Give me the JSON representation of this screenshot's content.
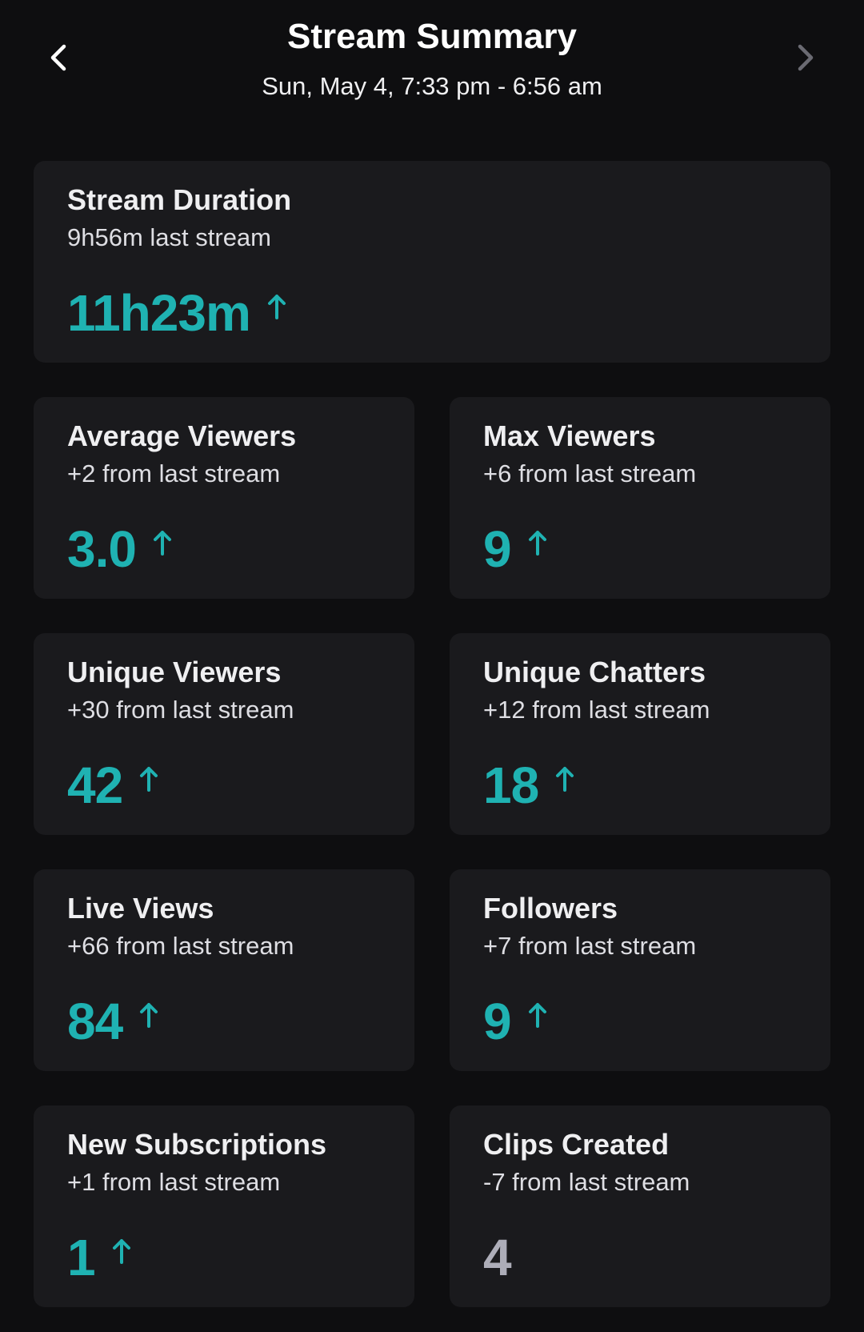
{
  "header": {
    "title": "Stream Summary",
    "subtitle": "Sun, May 4, 7:33 pm - 6:56 am"
  },
  "colors": {
    "background": "#0e0e10",
    "card": "#1a1a1d",
    "accent_up": "#1fb2b2",
    "neutral_value": "#adadb8",
    "next_disabled": "#6a6a72"
  },
  "icons": {
    "prev": "chevron-left-icon",
    "next": "chevron-right-icon",
    "trend": "arrow-up-icon"
  },
  "cards": [
    {
      "title": "Stream Duration",
      "subtitle": "9h56m last stream",
      "value": "11h23m",
      "trend": "up"
    },
    {
      "title": "Average Viewers",
      "subtitle": "+2 from last stream",
      "value": "3.0",
      "trend": "up"
    },
    {
      "title": "Max Viewers",
      "subtitle": "+6 from last stream",
      "value": "9",
      "trend": "up"
    },
    {
      "title": "Unique Viewers",
      "subtitle": "+30 from last stream",
      "value": "42",
      "trend": "up"
    },
    {
      "title": "Unique Chatters",
      "subtitle": "+12 from last stream",
      "value": "18",
      "trend": "up"
    },
    {
      "title": "Live Views",
      "subtitle": "+66 from last stream",
      "value": "84",
      "trend": "up"
    },
    {
      "title": "Followers",
      "subtitle": "+7 from last stream",
      "value": "9",
      "trend": "up"
    },
    {
      "title": "New Subscriptions",
      "subtitle": "+1 from last stream",
      "value": "1",
      "trend": "up"
    },
    {
      "title": "Clips Created",
      "subtitle": "-7 from last stream",
      "value": "4",
      "trend": "none"
    }
  ]
}
